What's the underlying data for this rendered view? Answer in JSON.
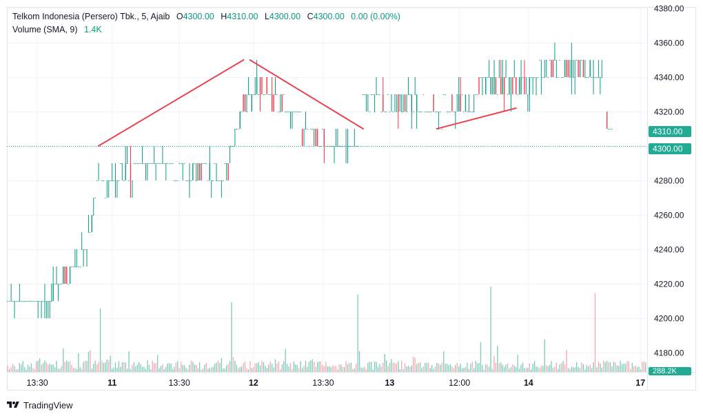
{
  "legend": {
    "symbol": "Telkom Indonesia (Persero) Tbk., 5, Ajaib",
    "o_key": "O",
    "o_val": "4300.00",
    "h_key": "H",
    "h_val": "4310.00",
    "l_key": "L",
    "l_val": "4300.00",
    "c_key": "C",
    "c_val": "4300.00",
    "change": "0.00 (0.00%)",
    "volume_label": "Volume (SMA, 9)",
    "volume_val": "1.4K"
  },
  "price_labels": {
    "last": "4310.00",
    "prev_close": "4300.00",
    "volume": "288.2K"
  },
  "branding": "TradingView",
  "colors": {
    "up": "#089981",
    "down": "#f23645",
    "volume_up": "#7fcbb8",
    "volume_down": "#f7a9af",
    "drawing": "#e8424d",
    "badge": "#22ab94"
  },
  "chart_data": {
    "type": "candlestick",
    "y_ticks": [
      "4180.00",
      "4200.00",
      "4220.00",
      "4240.00",
      "4260.00",
      "4280.00",
      "4300.00",
      "4320.00",
      "4340.00",
      "4360.00",
      "4380.00"
    ],
    "ylim": [
      4176,
      4380
    ],
    "x_ticks": [
      "13:30",
      "11",
      "13:30",
      "12",
      "13:30",
      "13",
      "12:00",
      "14",
      "17"
    ],
    "reference_line": 4300,
    "trend_lines": [
      [
        [
          0.143,
          4300
        ],
        [
          0.37,
          4350
        ]
      ],
      [
        [
          0.38,
          4350
        ],
        [
          0.557,
          4310
        ]
      ],
      [
        [
          0.672,
          4310
        ],
        [
          0.796,
          4322
        ]
      ]
    ],
    "segments": [
      {
        "t0": 0.0,
        "t1": 0.05,
        "start": 4210,
        "end": 4210,
        "amp": 8
      },
      {
        "t0": 0.05,
        "t1": 0.08,
        "start": 4210,
        "end": 4220,
        "amp": 6
      },
      {
        "t0": 0.08,
        "t1": 0.11,
        "start": 4220,
        "end": 4230,
        "amp": 8
      },
      {
        "t0": 0.11,
        "t1": 0.135,
        "start": 4230,
        "end": 4260,
        "amp": 6
      },
      {
        "t0": 0.135,
        "t1": 0.145,
        "start": 4260,
        "end": 4300,
        "amp": 6
      },
      {
        "t0": 0.145,
        "t1": 0.205,
        "start": 4275,
        "end": 4290,
        "amp": 8
      },
      {
        "t0": 0.205,
        "t1": 0.26,
        "start": 4290,
        "end": 4290,
        "amp": 10
      },
      {
        "t0": 0.26,
        "t1": 0.345,
        "start": 4285,
        "end": 4285,
        "amp": 6
      },
      {
        "t0": 0.345,
        "t1": 0.365,
        "start": 4290,
        "end": 4320,
        "amp": 10
      },
      {
        "t0": 0.365,
        "t1": 0.41,
        "start": 4325,
        "end": 4335,
        "amp": 12
      },
      {
        "t0": 0.41,
        "t1": 0.46,
        "start": 4325,
        "end": 4320,
        "amp": 8
      },
      {
        "t0": 0.46,
        "t1": 0.5,
        "start": 4305,
        "end": 4305,
        "amp": 6
      },
      {
        "t0": 0.5,
        "t1": 0.55,
        "start": 4300,
        "end": 4300,
        "amp": 8
      },
      {
        "t0": 0.555,
        "t1": 0.67,
        "start": 4325,
        "end": 4325,
        "amp": 6
      },
      {
        "t0": 0.67,
        "t1": 0.68,
        "start": 4315,
        "end": 4315,
        "amp": 6
      },
      {
        "t0": 0.68,
        "t1": 0.73,
        "start": 4325,
        "end": 4325,
        "amp": 6
      },
      {
        "t0": 0.73,
        "t1": 0.8,
        "start": 4335,
        "end": 4335,
        "amp": 8
      },
      {
        "t0": 0.8,
        "t1": 0.83,
        "start": 4335,
        "end": 4335,
        "amp": 6
      },
      {
        "t0": 0.83,
        "t1": 0.915,
        "start": 4345,
        "end": 4345,
        "amp": 6
      },
      {
        "t0": 0.915,
        "t1": 0.93,
        "start": 4340,
        "end": 4340,
        "amp": 2
      },
      {
        "t0": 0.935,
        "t1": 0.945,
        "start": 4315,
        "end": 4315,
        "amp": 6
      }
    ],
    "volume_spikes": [
      {
        "t": 0.145,
        "v": 4.1
      },
      {
        "t": 0.235,
        "v": 1.1
      },
      {
        "t": 0.35,
        "v": 4.5
      },
      {
        "t": 0.548,
        "v": 5.0
      },
      {
        "t": 0.74,
        "v": 1.9
      },
      {
        "t": 0.755,
        "v": 5.5
      },
      {
        "t": 0.765,
        "v": 1.7
      },
      {
        "t": 0.84,
        "v": 2.1
      },
      {
        "t": 0.918,
        "v": 5.1
      }
    ],
    "volume_max": 6.0
  }
}
